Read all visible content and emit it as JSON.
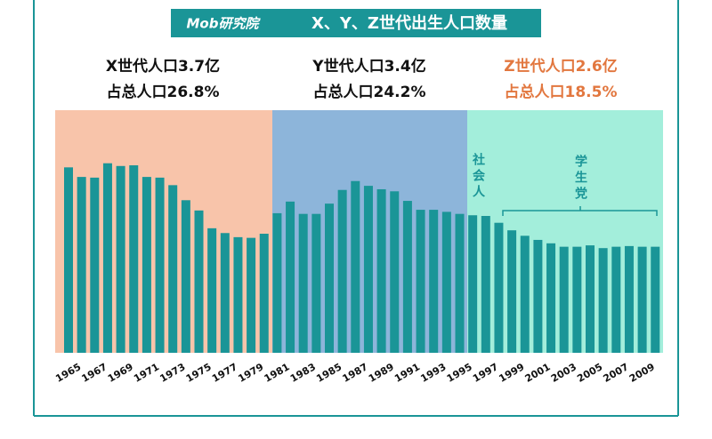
{
  "chart_data": {
    "type": "bar",
    "brand": "Mob研究院",
    "title": "X、Y、Z世代出生人口数量",
    "categories": [
      "1965",
      null,
      "1967",
      null,
      "1969",
      null,
      "1971",
      null,
      "1973",
      null,
      "1975",
      null,
      "1977",
      null,
      "1979",
      null,
      "1981",
      null,
      "1983",
      null,
      "1985",
      null,
      "1987",
      null,
      "1989",
      null,
      "1991",
      null,
      "1993",
      null,
      "1995",
      null,
      "1997",
      null,
      "1999",
      null,
      "2001",
      null,
      "2003",
      null,
      "2005",
      null,
      "2007",
      null,
      "2009",
      null
    ],
    "values": [
      27.1,
      25.7,
      25.6,
      27.7,
      27.3,
      27.4,
      25.7,
      25.6,
      24.5,
      22.3,
      20.8,
      18.2,
      17.5,
      16.9,
      16.8,
      17.4,
      20.4,
      22.1,
      20.3,
      20.3,
      21.8,
      23.8,
      25.1,
      24.4,
      23.9,
      23.6,
      22.2,
      20.9,
      20.9,
      20.6,
      20.3,
      20.1,
      20.0,
      19.0,
      17.9,
      17.1,
      16.5,
      16.0,
      15.5,
      15.5,
      15.7,
      15.3,
      15.5,
      15.6,
      15.5,
      15.5
    ],
    "color": "#1a9597",
    "regions": [
      {
        "lines": [
          "X世代人口3.7亿",
          "占总人口26.8%"
        ],
        "color": "#f8c4aa",
        "text_color": "#111111"
      },
      {
        "lines": [
          "Y世代人口3.4亿",
          "占总人口24.2%"
        ],
        "color": "#8db5da",
        "text_color": "#111111"
      },
      {
        "lines": [
          "Z世代人口2.6亿",
          "占总人口18.5%"
        ],
        "color": "#a3eedb",
        "text_color": "#e2773f"
      }
    ],
    "groups": [
      "社会人",
      "学生党"
    ]
  }
}
